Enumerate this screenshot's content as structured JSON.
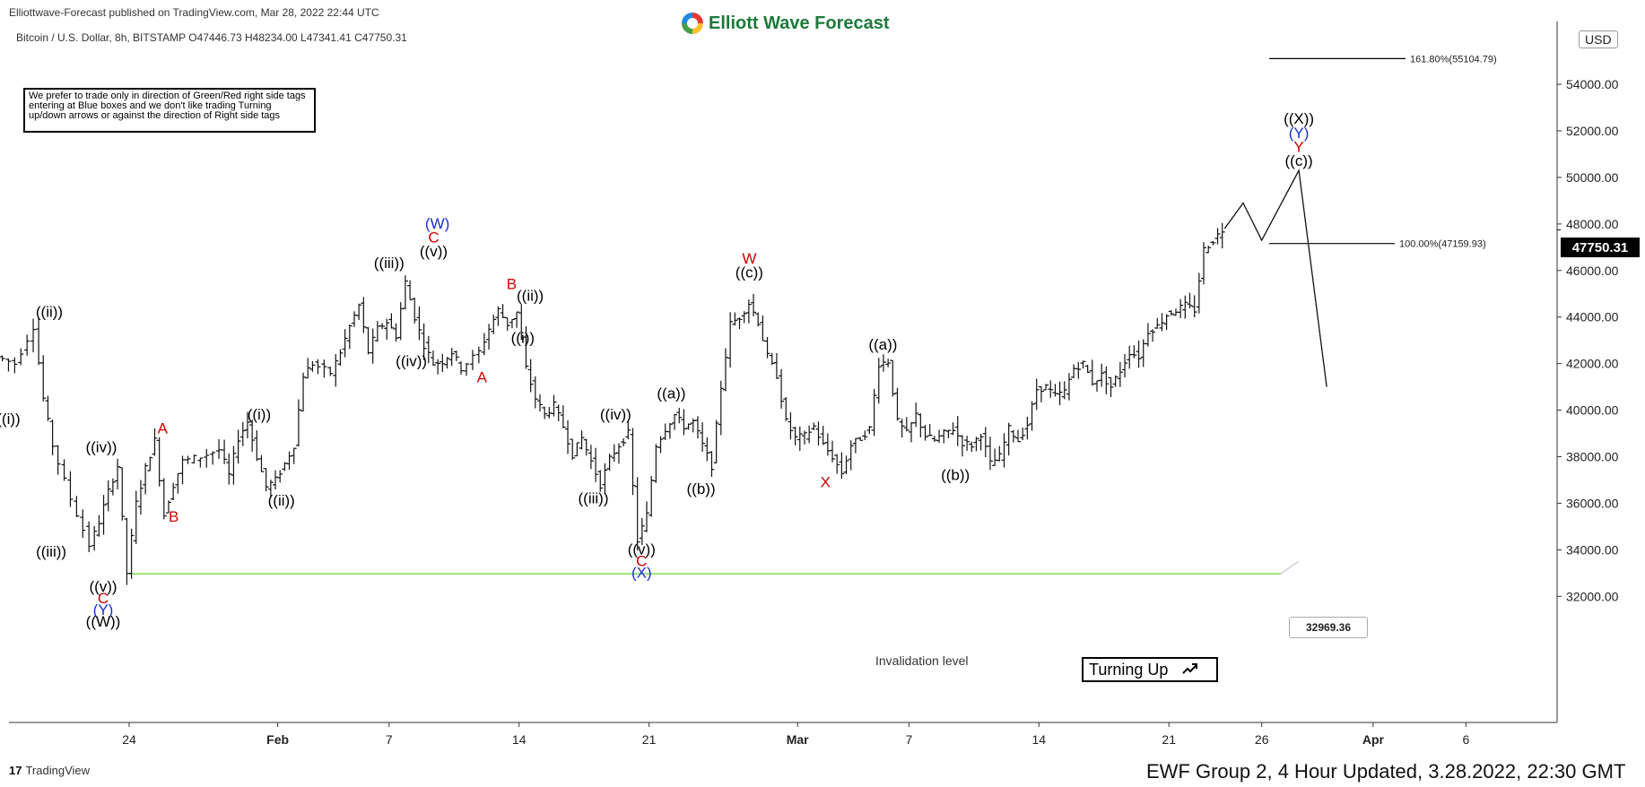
{
  "header": {
    "published": "Elliottwave-Forecast published on TradingView.com, Mar 28, 2022 22:44 UTC",
    "symbol_line": "Bitcoin / U.S. Dollar, 8h, BITSTAMP  O47446.73  H48234.00  L47341.41  C47750.31",
    "brand": "Elliott Wave Forecast",
    "currency": "USD"
  },
  "disclaimer": "We prefer to trade only in direction of Green/Red right side tags entering at Blue boxes and we don't like trading Turning up/down arrows or against the direction of Right side tags",
  "turning": {
    "label": "Turning Up",
    "icon": "arrow-up-right-icon"
  },
  "last_price": "47750.31",
  "invalidation": {
    "label": "Invalidation level",
    "value": "32969.36",
    "color": "#7ed957"
  },
  "footer": {
    "left": "TradingView",
    "right": "EWF Group 2, 4 Hour Updated, 3.28.2022, 22:30 GMT"
  },
  "chart_data": {
    "type": "ohlc",
    "ylim": [
      30500,
      56000
    ],
    "y_ticks": [
      "32000.00",
      "34000.00",
      "36000.00",
      "38000.00",
      "40000.00",
      "42000.00",
      "44000.00",
      "46000.00",
      "48000.00",
      "50000.00",
      "52000.00",
      "54000.00"
    ],
    "x_ticks": [
      {
        "label": "24",
        "day": 3
      },
      {
        "label": "Feb",
        "day": 11
      },
      {
        "label": "7",
        "day": 17
      },
      {
        "label": "14",
        "day": 24
      },
      {
        "label": "21",
        "day": 31
      },
      {
        "label": "Mar",
        "day": 39
      },
      {
        "label": "7",
        "day": 45
      },
      {
        "label": "14",
        "day": 52
      },
      {
        "label": "21",
        "day": 59
      },
      {
        "label": "26",
        "day": 64
      },
      {
        "label": "Apr",
        "day": 70
      },
      {
        "label": "6",
        "day": 75
      }
    ],
    "price_path": [
      [
        -4,
        42300
      ],
      [
        -3,
        42000
      ],
      [
        -2,
        43600
      ],
      [
        -1.5,
        40500
      ],
      [
        -1,
        38500
      ],
      [
        0,
        36200
      ],
      [
        1,
        34200
      ],
      [
        1.5,
        35200
      ],
      [
        2,
        36500
      ],
      [
        2.5,
        37600
      ],
      [
        3,
        33000
      ],
      [
        3.5,
        36000
      ],
      [
        4,
        37500
      ],
      [
        4.5,
        38700
      ],
      [
        5,
        35500
      ],
      [
        5.5,
        36800
      ],
      [
        6,
        37800
      ],
      [
        7,
        38000
      ],
      [
        8,
        38300
      ],
      [
        8.5,
        37200
      ],
      [
        9,
        38800
      ],
      [
        9.5,
        39500
      ],
      [
        10,
        38000
      ],
      [
        10.5,
        36700
      ],
      [
        11,
        37000
      ],
      [
        11.5,
        37700
      ],
      [
        12,
        38500
      ],
      [
        12.5,
        41500
      ],
      [
        13,
        42000
      ],
      [
        14,
        41600
      ],
      [
        14.5,
        42500
      ],
      [
        15,
        43600
      ],
      [
        15.5,
        44500
      ],
      [
        16,
        42500
      ],
      [
        16.5,
        43500
      ],
      [
        17,
        43800
      ],
      [
        17.5,
        43200
      ],
      [
        18,
        45500
      ],
      [
        18.5,
        44000
      ],
      [
        19,
        42800
      ],
      [
        19.5,
        42000
      ],
      [
        20,
        42100
      ],
      [
        20.5,
        42500
      ],
      [
        21,
        41800
      ],
      [
        22,
        42500
      ],
      [
        22.5,
        43500
      ],
      [
        23,
        44300
      ],
      [
        23.5,
        43700
      ],
      [
        24,
        44200
      ],
      [
        24.5,
        41800
      ],
      [
        25,
        40500
      ],
      [
        25.5,
        39800
      ],
      [
        26,
        40200
      ],
      [
        26.5,
        39300
      ],
      [
        27,
        38100
      ],
      [
        27.5,
        38800
      ],
      [
        28,
        37800
      ],
      [
        28.5,
        36800
      ],
      [
        29,
        37900
      ],
      [
        29.5,
        38500
      ],
      [
        30,
        39000
      ],
      [
        30.5,
        34400
      ],
      [
        31,
        35500
      ],
      [
        31.5,
        38500
      ],
      [
        32,
        39200
      ],
      [
        32.5,
        39800
      ],
      [
        33,
        39300
      ],
      [
        33.5,
        39500
      ],
      [
        34,
        38500
      ],
      [
        34.5,
        37600
      ],
      [
        35,
        41000
      ],
      [
        35.5,
        43700
      ],
      [
        36,
        44000
      ],
      [
        36.5,
        44600
      ],
      [
        37,
        43800
      ],
      [
        37.5,
        42300
      ],
      [
        38,
        41500
      ],
      [
        38.5,
        39500
      ],
      [
        39,
        38800
      ],
      [
        39.5,
        38900
      ],
      [
        40,
        39300
      ],
      [
        40.5,
        38500
      ],
      [
        41,
        38000
      ],
      [
        41.5,
        37300
      ],
      [
        42,
        38500
      ],
      [
        42.5,
        38800
      ],
      [
        43,
        39200
      ],
      [
        43.5,
        42000
      ],
      [
        44,
        42100
      ],
      [
        44.5,
        39500
      ],
      [
        45,
        39000
      ],
      [
        45.5,
        39800
      ],
      [
        46,
        38900
      ],
      [
        46.5,
        38700
      ],
      [
        47,
        39000
      ],
      [
        47.5,
        39200
      ],
      [
        48,
        38600
      ],
      [
        48.5,
        38500
      ],
      [
        49,
        39000
      ],
      [
        49.5,
        37700
      ],
      [
        50,
        38000
      ],
      [
        50.5,
        39200
      ],
      [
        51,
        38700
      ],
      [
        51.5,
        39400
      ],
      [
        52,
        40900
      ],
      [
        52.5,
        41000
      ],
      [
        53,
        40600
      ],
      [
        53.5,
        40800
      ],
      [
        54,
        41800
      ],
      [
        54.5,
        42000
      ],
      [
        55,
        41200
      ],
      [
        55.5,
        41500
      ],
      [
        56,
        41000
      ],
      [
        56.5,
        41700
      ],
      [
        57,
        42500
      ],
      [
        57.5,
        42300
      ],
      [
        58,
        43400
      ],
      [
        58.5,
        43600
      ],
      [
        59,
        44100
      ],
      [
        59.5,
        44300
      ],
      [
        60,
        44500
      ],
      [
        60.5,
        44300
      ],
      [
        61,
        46900
      ],
      [
        61.5,
        47300
      ],
      [
        62,
        47750
      ]
    ],
    "projection": [
      [
        62,
        47800
      ],
      [
        63,
        48900
      ],
      [
        64,
        47300
      ],
      [
        66,
        50300
      ],
      [
        67.5,
        41000
      ]
    ],
    "fib_levels": [
      {
        "label": "161.80%(55104.79)",
        "value": 55104.79
      },
      {
        "label": "100.00%(47159.93)",
        "value": 47159.93
      }
    ],
    "labels": [
      {
        "t": "((ii))",
        "d": -1.3,
        "p": 44000,
        "c": "#000"
      },
      {
        "t": "((i))",
        "d": -3.5,
        "p": 39400,
        "c": "#000"
      },
      {
        "t": "((iii))",
        "d": -1.2,
        "p": 33700,
        "c": "#000"
      },
      {
        "t": "((iv))",
        "d": 1.5,
        "p": 38200,
        "c": "#000"
      },
      {
        "t": "((v))",
        "d": 1.6,
        "p": 32200,
        "c": "#000"
      },
      {
        "t": "C",
        "d": 1.6,
        "p": 31700,
        "c": "#d00000"
      },
      {
        "t": "(Y)",
        "d": 1.6,
        "p": 31200,
        "c": "#1b2fd6"
      },
      {
        "t": "((W))",
        "d": 1.6,
        "p": 30700,
        "c": "#000"
      },
      {
        "t": "A",
        "d": 4.8,
        "p": 39000,
        "c": "#d00000"
      },
      {
        "t": "B",
        "d": 5.4,
        "p": 35200,
        "c": "#d00000"
      },
      {
        "t": "((i))",
        "d": 10.0,
        "p": 39600,
        "c": "#000"
      },
      {
        "t": "((ii))",
        "d": 11.2,
        "p": 35900,
        "c": "#000"
      },
      {
        "t": "((iii))",
        "d": 17.0,
        "p": 46100,
        "c": "#000"
      },
      {
        "t": "((iv))",
        "d": 18.2,
        "p": 41900,
        "c": "#000"
      },
      {
        "t": "((v))",
        "d": 19.4,
        "p": 46600,
        "c": "#000"
      },
      {
        "t": "C",
        "d": 19.4,
        "p": 47200,
        "c": "#d00000"
      },
      {
        "t": "(W)",
        "d": 19.6,
        "p": 47800,
        "c": "#1b2fd6"
      },
      {
        "t": "A",
        "d": 22.0,
        "p": 41200,
        "c": "#d00000"
      },
      {
        "t": "B",
        "d": 23.6,
        "p": 45200,
        "c": "#d00000"
      },
      {
        "t": "((ii))",
        "d": 24.6,
        "p": 44700,
        "c": "#000"
      },
      {
        "t": "((i))",
        "d": 24.2,
        "p": 42900,
        "c": "#000"
      },
      {
        "t": "((iv))",
        "d": 29.2,
        "p": 39600,
        "c": "#000"
      },
      {
        "t": "((iii))",
        "d": 28.0,
        "p": 36000,
        "c": "#000"
      },
      {
        "t": "((v))",
        "d": 30.6,
        "p": 33800,
        "c": "#000"
      },
      {
        "t": "C",
        "d": 30.6,
        "p": 33300,
        "c": "#d00000"
      },
      {
        "t": "(X)",
        "d": 30.6,
        "p": 32800,
        "c": "#1b2fd6"
      },
      {
        "t": "((a))",
        "d": 32.2,
        "p": 40500,
        "c": "#000"
      },
      {
        "t": "((b))",
        "d": 33.8,
        "p": 36400,
        "c": "#000"
      },
      {
        "t": "W",
        "d": 36.4,
        "p": 46300,
        "c": "#d00000"
      },
      {
        "t": "((c))",
        "d": 36.4,
        "p": 45700,
        "c": "#000"
      },
      {
        "t": "X",
        "d": 40.5,
        "p": 36700,
        "c": "#d00000"
      },
      {
        "t": "((a))",
        "d": 43.6,
        "p": 42600,
        "c": "#000"
      },
      {
        "t": "((b))",
        "d": 47.5,
        "p": 37000,
        "c": "#000"
      },
      {
        "t": "((X))",
        "d": 66.0,
        "p": 52300,
        "c": "#000"
      },
      {
        "t": "(Y)",
        "d": 66.0,
        "p": 51700,
        "c": "#1b2fd6"
      },
      {
        "t": "Y",
        "d": 66.0,
        "p": 51100,
        "c": "#d00000"
      },
      {
        "t": "((c))",
        "d": 66.0,
        "p": 50500,
        "c": "#000"
      }
    ]
  }
}
